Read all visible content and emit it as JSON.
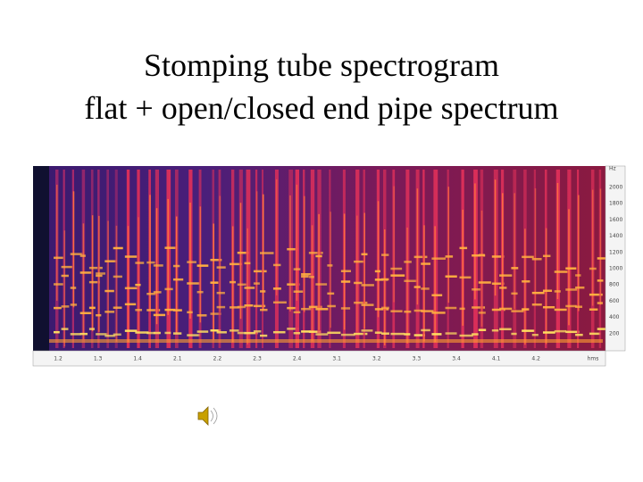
{
  "slide": {
    "title_lines": [
      "Stomping tube spectrogram",
      "flat + open/closed end pipe spectrum"
    ]
  },
  "spectrogram": {
    "frequency_labels": [
      "Hz",
      "2000",
      "1800",
      "1600",
      "1400",
      "1200",
      "1000",
      "800",
      "600",
      "400",
      "200"
    ],
    "time_labels": [
      "1.2",
      "1.3",
      "1.4",
      "2.1",
      "2.2",
      "2.3",
      "2.4",
      "3.1",
      "3.2",
      "3.3",
      "3.4",
      "4.1",
      "4.2",
      "hms"
    ]
  }
}
